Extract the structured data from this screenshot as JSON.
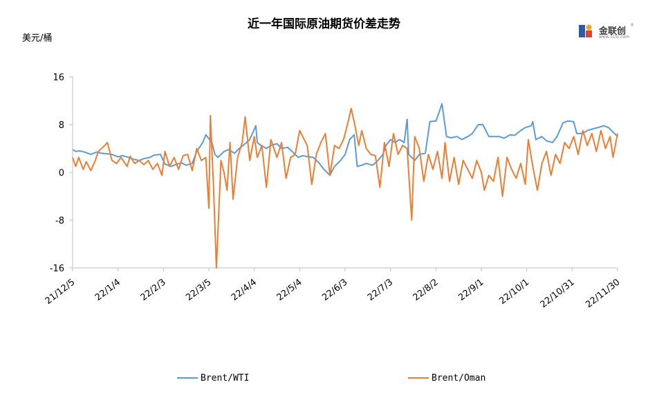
{
  "colors": {
    "wti": "#5B9BD5",
    "oman": "#ED7D31",
    "axis": "#BFBFBF"
  },
  "header": {
    "title": "近一年国际原油期货价差走势",
    "unit": "美元/桶"
  },
  "logo": {
    "text": "金联创",
    "sub": "www.315i.com",
    "reg": "®"
  },
  "chart_data": {
    "type": "line",
    "title": "近一年国际原油期货价差走势",
    "ylabel": "美元/桶",
    "ylim": [
      -16,
      16
    ],
    "yticks": [
      -16,
      -8,
      0,
      8,
      16
    ],
    "xlim": [
      "2021-12-05",
      "2022-11-30"
    ],
    "xtick_labels": [
      "21/12/5",
      "22/1/4",
      "22/2/3",
      "22/3/5",
      "22/4/4",
      "22/5/4",
      "22/6/3",
      "22/7/3",
      "22/8/2",
      "22/9/1",
      "22/10/1",
      "22/10/31",
      "22/11/30"
    ],
    "legend": "bottom",
    "series": [
      {
        "name": "Brent/WTI",
        "points": [
          [
            "2021-12-05",
            3.8
          ],
          [
            "2021-12-07",
            3.5
          ],
          [
            "2021-12-10",
            3.6
          ],
          [
            "2021-12-14",
            3.3
          ],
          [
            "2021-12-17",
            3.0
          ],
          [
            "2021-12-21",
            3.4
          ],
          [
            "2021-12-24",
            3.2
          ],
          [
            "2021-12-28",
            3.1
          ],
          [
            "2021-12-31",
            3.0
          ],
          [
            "2022-01-04",
            2.6
          ],
          [
            "2022-01-07",
            2.8
          ],
          [
            "2022-01-11",
            2.5
          ],
          [
            "2022-01-14",
            2.2
          ],
          [
            "2022-01-18",
            2.0
          ],
          [
            "2022-01-21",
            2.3
          ],
          [
            "2022-01-25",
            2.5
          ],
          [
            "2022-01-28",
            2.9
          ],
          [
            "2022-02-01",
            3.0
          ],
          [
            "2022-02-04",
            1.4
          ],
          [
            "2022-02-08",
            1.0
          ],
          [
            "2022-02-11",
            1.3
          ],
          [
            "2022-02-15",
            1.6
          ],
          [
            "2022-02-18",
            1.2
          ],
          [
            "2022-02-22",
            1.5
          ],
          [
            "2022-02-25",
            3.5
          ],
          [
            "2022-03-01",
            5.0
          ],
          [
            "2022-03-03",
            6.3
          ],
          [
            "2022-03-07",
            5.0
          ],
          [
            "2022-03-09",
            3.0
          ],
          [
            "2022-03-11",
            2.5
          ],
          [
            "2022-03-15",
            3.5
          ],
          [
            "2022-03-18",
            3.8
          ],
          [
            "2022-03-22",
            3.2
          ],
          [
            "2022-03-25",
            4.0
          ],
          [
            "2022-03-29",
            4.8
          ],
          [
            "2022-04-01",
            5.5
          ],
          [
            "2022-04-05",
            7.8
          ],
          [
            "2022-04-06",
            5.0
          ],
          [
            "2022-04-08",
            4.6
          ],
          [
            "2022-04-12",
            4.0
          ],
          [
            "2022-04-15",
            4.5
          ],
          [
            "2022-04-19",
            4.8
          ],
          [
            "2022-04-22",
            4.0
          ],
          [
            "2022-04-26",
            4.2
          ],
          [
            "2022-04-29",
            3.5
          ],
          [
            "2022-05-03",
            2.5
          ],
          [
            "2022-05-06",
            2.8
          ],
          [
            "2022-05-10",
            2.6
          ],
          [
            "2022-05-13",
            2.5
          ],
          [
            "2022-05-17",
            1.5
          ],
          [
            "2022-05-20",
            0.5
          ],
          [
            "2022-05-24",
            -0.5
          ],
          [
            "2022-05-27",
            1.0
          ],
          [
            "2022-05-31",
            2.0
          ],
          [
            "2022-06-03",
            3.0
          ],
          [
            "2022-06-06",
            5.5
          ],
          [
            "2022-06-09",
            6.3
          ],
          [
            "2022-06-11",
            1.0
          ],
          [
            "2022-06-14",
            1.2
          ],
          [
            "2022-06-17",
            1.5
          ],
          [
            "2022-06-21",
            1.2
          ],
          [
            "2022-06-24",
            1.8
          ],
          [
            "2022-06-28",
            3.0
          ],
          [
            "2022-06-30",
            4.5
          ],
          [
            "2022-07-03",
            5.5
          ],
          [
            "2022-07-06",
            5.0
          ],
          [
            "2022-07-09",
            5.5
          ],
          [
            "2022-07-12",
            5.0
          ],
          [
            "2022-07-14",
            8.9
          ],
          [
            "2022-07-15",
            3.0
          ],
          [
            "2022-07-19",
            2.0
          ],
          [
            "2022-07-22",
            3.0
          ],
          [
            "2022-07-26",
            3.2
          ],
          [
            "2022-07-29",
            8.5
          ],
          [
            "2022-08-02",
            8.6
          ],
          [
            "2022-08-04",
            10.0
          ],
          [
            "2022-08-06",
            11.5
          ],
          [
            "2022-08-09",
            6.0
          ],
          [
            "2022-08-12",
            5.8
          ],
          [
            "2022-08-16",
            6.0
          ],
          [
            "2022-08-19",
            5.5
          ],
          [
            "2022-08-23",
            6.0
          ],
          [
            "2022-08-26",
            6.5
          ],
          [
            "2022-08-30",
            8.0
          ],
          [
            "2022-09-02",
            8.0
          ],
          [
            "2022-09-06",
            6.0
          ],
          [
            "2022-09-09",
            6.0
          ],
          [
            "2022-09-13",
            6.0
          ],
          [
            "2022-09-16",
            5.7
          ],
          [
            "2022-09-20",
            6.3
          ],
          [
            "2022-09-23",
            6.2
          ],
          [
            "2022-09-27",
            7.0
          ],
          [
            "2022-09-30",
            7.5
          ],
          [
            "2022-10-04",
            7.8
          ],
          [
            "2022-10-05",
            8.5
          ],
          [
            "2022-10-07",
            5.5
          ],
          [
            "2022-10-11",
            6.0
          ],
          [
            "2022-10-14",
            5.3
          ],
          [
            "2022-10-18",
            5.0
          ],
          [
            "2022-10-21",
            6.0
          ],
          [
            "2022-10-25",
            8.3
          ],
          [
            "2022-10-28",
            8.6
          ],
          [
            "2022-11-01",
            8.5
          ],
          [
            "2022-11-03",
            6.5
          ],
          [
            "2022-11-07",
            6.5
          ],
          [
            "2022-11-10",
            7.0
          ],
          [
            "2022-11-14",
            7.3
          ],
          [
            "2022-11-17",
            7.5
          ],
          [
            "2022-11-21",
            7.8
          ],
          [
            "2022-11-24",
            7.5
          ],
          [
            "2022-11-28",
            6.5
          ],
          [
            "2022-11-30",
            6.0
          ]
        ]
      },
      {
        "name": "Brent/Oman",
        "points": [
          [
            "2021-12-05",
            2.5
          ],
          [
            "2021-12-07",
            1.0
          ],
          [
            "2021-12-09",
            2.5
          ],
          [
            "2021-12-12",
            0.5
          ],
          [
            "2021-12-14",
            1.8
          ],
          [
            "2021-12-17",
            0.3
          ],
          [
            "2021-12-20",
            2.0
          ],
          [
            "2021-12-22",
            3.5
          ],
          [
            "2021-12-25",
            4.2
          ],
          [
            "2021-12-28",
            5.0
          ],
          [
            "2021-12-31",
            2.0
          ],
          [
            "2022-01-03",
            1.5
          ],
          [
            "2022-01-06",
            2.5
          ],
          [
            "2022-01-10",
            1.0
          ],
          [
            "2022-01-12",
            2.7
          ],
          [
            "2022-01-15",
            1.5
          ],
          [
            "2022-01-18",
            2.0
          ],
          [
            "2022-01-21",
            1.3
          ],
          [
            "2022-01-24",
            2.0
          ],
          [
            "2022-01-27",
            0.5
          ],
          [
            "2022-01-30",
            1.5
          ],
          [
            "2022-02-02",
            -0.5
          ],
          [
            "2022-02-04",
            3.5
          ],
          [
            "2022-02-07",
            1.0
          ],
          [
            "2022-02-10",
            2.5
          ],
          [
            "2022-02-13",
            0.5
          ],
          [
            "2022-02-16",
            2.8
          ],
          [
            "2022-02-19",
            3.0
          ],
          [
            "2022-02-22",
            0.3
          ],
          [
            "2022-02-25",
            4.0
          ],
          [
            "2022-02-28",
            2.0
          ],
          [
            "2022-03-03",
            2.5
          ],
          [
            "2022-03-05",
            -6.0
          ],
          [
            "2022-03-06",
            9.5
          ],
          [
            "2022-03-08",
            -2.0
          ],
          [
            "2022-03-10",
            -16.0
          ],
          [
            "2022-03-13",
            2.0
          ],
          [
            "2022-03-15",
            0.0
          ],
          [
            "2022-03-17",
            -3.0
          ],
          [
            "2022-03-19",
            5.0
          ],
          [
            "2022-03-21",
            -4.5
          ],
          [
            "2022-03-24",
            2.5
          ],
          [
            "2022-03-27",
            5.0
          ],
          [
            "2022-03-29",
            9.3
          ],
          [
            "2022-04-01",
            2.0
          ],
          [
            "2022-04-04",
            6.0
          ],
          [
            "2022-04-06",
            2.5
          ],
          [
            "2022-04-09",
            4.5
          ],
          [
            "2022-04-12",
            -2.5
          ],
          [
            "2022-04-15",
            5.5
          ],
          [
            "2022-04-19",
            2.5
          ],
          [
            "2022-04-22",
            5.0
          ],
          [
            "2022-04-25",
            -1.0
          ],
          [
            "2022-04-28",
            2.5
          ],
          [
            "2022-05-01",
            3.0
          ],
          [
            "2022-05-04",
            7.0
          ],
          [
            "2022-05-06",
            6.0
          ],
          [
            "2022-05-09",
            4.5
          ],
          [
            "2022-05-12",
            -2.0
          ],
          [
            "2022-05-15",
            3.0
          ],
          [
            "2022-05-18",
            5.0
          ],
          [
            "2022-05-21",
            6.5
          ],
          [
            "2022-05-24",
            -0.5
          ],
          [
            "2022-05-27",
            4.5
          ],
          [
            "2022-05-30",
            4.0
          ],
          [
            "2022-06-02",
            5.5
          ],
          [
            "2022-06-05",
            8.5
          ],
          [
            "2022-06-07",
            10.7
          ],
          [
            "2022-06-09",
            8.5
          ],
          [
            "2022-06-12",
            4.5
          ],
          [
            "2022-06-14",
            7.0
          ],
          [
            "2022-06-17",
            4.0
          ],
          [
            "2022-06-20",
            3.0
          ],
          [
            "2022-06-23",
            2.8
          ],
          [
            "2022-06-26",
            -2.5
          ],
          [
            "2022-06-29",
            5.0
          ],
          [
            "2022-07-02",
            1.0
          ],
          [
            "2022-07-05",
            6.5
          ],
          [
            "2022-07-08",
            3.0
          ],
          [
            "2022-07-11",
            4.5
          ],
          [
            "2022-07-14",
            4.0
          ],
          [
            "2022-07-17",
            -8.0
          ],
          [
            "2022-07-19",
            6.0
          ],
          [
            "2022-07-22",
            4.0
          ],
          [
            "2022-07-25",
            -1.5
          ],
          [
            "2022-07-28",
            3.0
          ],
          [
            "2022-07-31",
            0.5
          ],
          [
            "2022-08-03",
            3.5
          ],
          [
            "2022-08-06",
            -1.0
          ],
          [
            "2022-08-08",
            5.0
          ],
          [
            "2022-08-11",
            -1.5
          ],
          [
            "2022-08-14",
            2.5
          ],
          [
            "2022-08-17",
            -2.0
          ],
          [
            "2022-08-20",
            2.0
          ],
          [
            "2022-08-23",
            0.5
          ],
          [
            "2022-08-26",
            -1.0
          ],
          [
            "2022-08-29",
            2.0
          ],
          [
            "2022-09-01",
            0.0
          ],
          [
            "2022-09-03",
            -3.0
          ],
          [
            "2022-09-06",
            -0.5
          ],
          [
            "2022-09-09",
            -1.5
          ],
          [
            "2022-09-12",
            2.5
          ],
          [
            "2022-09-15",
            -4.0
          ],
          [
            "2022-09-18",
            2.5
          ],
          [
            "2022-09-21",
            0.5
          ],
          [
            "2022-09-24",
            -1.0
          ],
          [
            "2022-09-27",
            1.5
          ],
          [
            "2022-09-30",
            -2.0
          ],
          [
            "2022-10-02",
            5.5
          ],
          [
            "2022-10-05",
            1.0
          ],
          [
            "2022-10-08",
            -3.0
          ],
          [
            "2022-10-11",
            1.5
          ],
          [
            "2022-10-14",
            3.5
          ],
          [
            "2022-10-17",
            -0.5
          ],
          [
            "2022-10-20",
            3.0
          ],
          [
            "2022-10-23",
            1.5
          ],
          [
            "2022-10-26",
            5.0
          ],
          [
            "2022-10-29",
            4.0
          ],
          [
            "2022-11-01",
            6.0
          ],
          [
            "2022-11-04",
            3.0
          ],
          [
            "2022-11-07",
            7.0
          ],
          [
            "2022-11-10",
            4.5
          ],
          [
            "2022-11-13",
            6.5
          ],
          [
            "2022-11-16",
            3.5
          ],
          [
            "2022-11-19",
            7.0
          ],
          [
            "2022-11-22",
            4.0
          ],
          [
            "2022-11-25",
            6.0
          ],
          [
            "2022-11-27",
            2.5
          ],
          [
            "2022-11-30",
            6.5
          ]
        ]
      }
    ]
  }
}
